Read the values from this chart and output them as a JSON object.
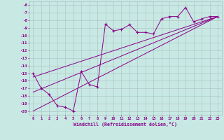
{
  "background_color": "#c8e8e4",
  "grid_color": "#aabfbf",
  "line_color": "#880088",
  "xlim": [
    -0.5,
    23.5
  ],
  "ylim": [
    -20.5,
    -5.5
  ],
  "xlabel": "Windchill (Refroidissement éolien,°C)",
  "xtick_vals": [
    0,
    1,
    2,
    3,
    4,
    5,
    6,
    7,
    8,
    9,
    10,
    11,
    12,
    13,
    14,
    15,
    16,
    17,
    18,
    19,
    20,
    21,
    22,
    23
  ],
  "ytick_vals": [
    -6,
    -7,
    -8,
    -9,
    -10,
    -11,
    -12,
    -13,
    -14,
    -15,
    -16,
    -17,
    -18,
    -19,
    -20
  ],
  "series1_x": [
    0,
    1,
    2,
    3,
    4,
    5,
    6,
    7,
    8,
    9,
    10,
    11,
    12,
    13,
    14,
    15,
    16,
    17,
    18,
    19,
    20,
    21,
    22,
    23
  ],
  "series1_y": [
    -15,
    -17,
    -17.8,
    -19.3,
    -19.5,
    -20.0,
    -14.8,
    -16.5,
    -16.8,
    -8.5,
    -9.4,
    -9.2,
    -8.6,
    -9.6,
    -9.6,
    -9.8,
    -7.8,
    -7.5,
    -7.5,
    -6.3,
    -8.2,
    -7.8,
    -7.5,
    -7.5
  ],
  "trend1_x": [
    0,
    23
  ],
  "trend1_y": [
    -17.5,
    -7.5
  ],
  "trend2_x": [
    0,
    23
  ],
  "trend2_y": [
    -20.0,
    -7.5
  ],
  "trend3_x": [
    0,
    23
  ],
  "trend3_y": [
    -15.5,
    -7.5
  ]
}
